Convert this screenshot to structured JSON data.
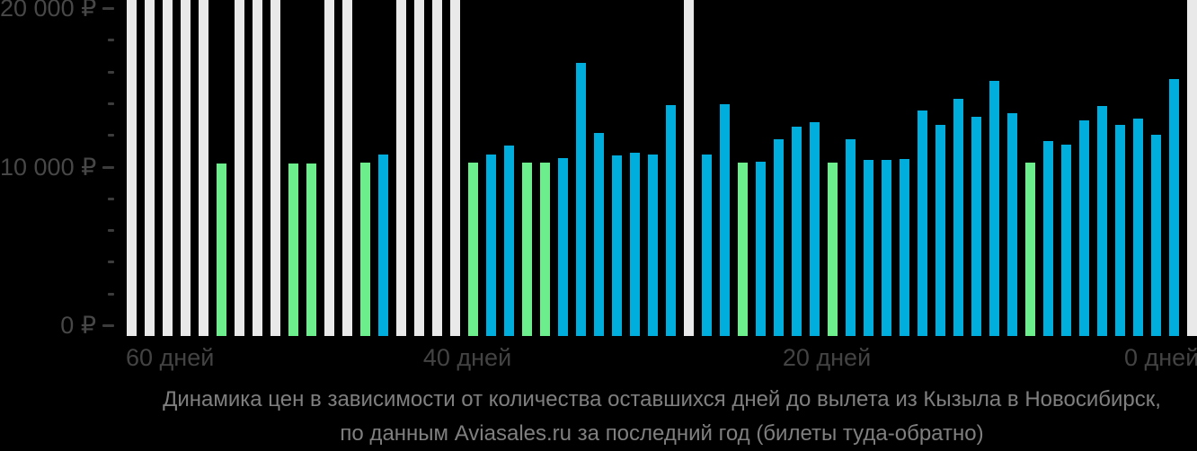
{
  "chart_data": {
    "type": "bar",
    "title": "Динамика цен в зависимости от количества оставшихся дней до вылета из Кызыла в Новосибирск,",
    "subtitle": "по данным Aviasales.ru за последний год (билеты туда-обратно)",
    "x_ticks": [
      {
        "label": "60 дней",
        "day": 60
      },
      {
        "label": "40 дней",
        "day": 40
      },
      {
        "label": "20 дней",
        "day": 20
      },
      {
        "label": "0 дней",
        "day": 0
      }
    ],
    "y_ticks": [
      {
        "label": "0 ₽",
        "value": 0
      },
      {
        "label": "10 000 ₽",
        "value": 10000
      },
      {
        "label": "20 000 ₽",
        "value": 20000
      }
    ],
    "ylim": [
      0,
      20000
    ],
    "y_minor_tick_step": 2000,
    "grid": false,
    "legend": "none",
    "colors": {
      "background": "#000000",
      "no_data_bar": "#e9e9e9",
      "green_bar": "#6cee8c",
      "blue_bar": "#00aedd",
      "axis_text": "#454545",
      "caption_text": "#7f7f7f"
    },
    "bars": [
      {
        "day": 59,
        "color": "gray",
        "value": null
      },
      {
        "day": 58,
        "color": "gray",
        "value": null
      },
      {
        "day": 57,
        "color": "gray",
        "value": null
      },
      {
        "day": 56,
        "color": "gray",
        "value": null
      },
      {
        "day": 55,
        "color": "gray",
        "value": null
      },
      {
        "day": 54,
        "color": "green",
        "value": 10200
      },
      {
        "day": 53,
        "color": "gray",
        "value": null
      },
      {
        "day": 52,
        "color": "gray",
        "value": null
      },
      {
        "day": 51,
        "color": "gray",
        "value": null
      },
      {
        "day": 50,
        "color": "green",
        "value": 10200
      },
      {
        "day": 49,
        "color": "green",
        "value": 10200
      },
      {
        "day": 48,
        "color": "gray",
        "value": null
      },
      {
        "day": 47,
        "color": "gray",
        "value": null
      },
      {
        "day": 46,
        "color": "green",
        "value": 10250
      },
      {
        "day": 45,
        "color": "blue",
        "value": 10750
      },
      {
        "day": 44,
        "color": "gray",
        "value": null
      },
      {
        "day": 43,
        "color": "gray",
        "value": null
      },
      {
        "day": 42,
        "color": "gray",
        "value": null
      },
      {
        "day": 41,
        "color": "gray",
        "value": null
      },
      {
        "day": 40,
        "color": "green",
        "value": 10250
      },
      {
        "day": 39,
        "color": "blue",
        "value": 10750
      },
      {
        "day": 38,
        "color": "blue",
        "value": 11350
      },
      {
        "day": 37,
        "color": "green",
        "value": 10250
      },
      {
        "day": 36,
        "color": "green",
        "value": 10250
      },
      {
        "day": 35,
        "color": "blue",
        "value": 10550
      },
      {
        "day": 34,
        "color": "blue",
        "value": 16550
      },
      {
        "day": 33,
        "color": "blue",
        "value": 12100
      },
      {
        "day": 32,
        "color": "blue",
        "value": 10700
      },
      {
        "day": 31,
        "color": "blue",
        "value": 10850
      },
      {
        "day": 30,
        "color": "blue",
        "value": 10750
      },
      {
        "day": 29,
        "color": "blue",
        "value": 13900
      },
      {
        "day": 28,
        "color": "gray",
        "value": null
      },
      {
        "day": 27,
        "color": "blue",
        "value": 10750
      },
      {
        "day": 26,
        "color": "blue",
        "value": 13950
      },
      {
        "day": 25,
        "color": "green",
        "value": 10250
      },
      {
        "day": 24,
        "color": "blue",
        "value": 10300
      },
      {
        "day": 23,
        "color": "blue",
        "value": 11700
      },
      {
        "day": 22,
        "color": "blue",
        "value": 12500
      },
      {
        "day": 21,
        "color": "blue",
        "value": 12800
      },
      {
        "day": 20,
        "color": "green",
        "value": 10250
      },
      {
        "day": 19,
        "color": "blue",
        "value": 11700
      },
      {
        "day": 18,
        "color": "blue",
        "value": 10400
      },
      {
        "day": 17,
        "color": "blue",
        "value": 10400
      },
      {
        "day": 16,
        "color": "blue",
        "value": 10500
      },
      {
        "day": 15,
        "color": "blue",
        "value": 13550
      },
      {
        "day": 14,
        "color": "blue",
        "value": 12650
      },
      {
        "day": 13,
        "color": "blue",
        "value": 14300
      },
      {
        "day": 12,
        "color": "blue",
        "value": 13150
      },
      {
        "day": 11,
        "color": "blue",
        "value": 15400
      },
      {
        "day": 10,
        "color": "blue",
        "value": 13350
      },
      {
        "day": 9,
        "color": "green",
        "value": 10250
      },
      {
        "day": 8,
        "color": "blue",
        "value": 11600
      },
      {
        "day": 7,
        "color": "blue",
        "value": 11400
      },
      {
        "day": 6,
        "color": "blue",
        "value": 12900
      },
      {
        "day": 5,
        "color": "blue",
        "value": 13800
      },
      {
        "day": 4,
        "color": "blue",
        "value": 12650
      },
      {
        "day": 3,
        "color": "blue",
        "value": 13050
      },
      {
        "day": 2,
        "color": "blue",
        "value": 12000
      },
      {
        "day": 1,
        "color": "blue",
        "value": 15500
      },
      {
        "day": 0,
        "color": "gray",
        "value": null
      }
    ]
  }
}
